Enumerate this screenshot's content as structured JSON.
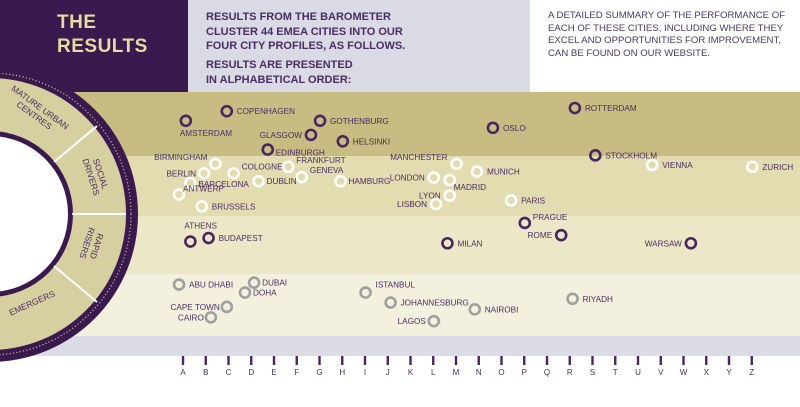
{
  "header": {
    "title_line1": "THE",
    "title_line2": "RESULTS",
    "intro_line1": "RESULTS FROM THE BAROMETER",
    "intro_line2": "CLUSTER 44 EMEA CITIES INTO OUR",
    "intro_line3": "FOUR CITY PROFILES, AS FOLLOWS.",
    "order_line1": "RESULTS ARE PRESENTED",
    "order_line2": "IN ALPHABETICAL ORDER:",
    "summary": "A DETAILED SUMMARY OF THE PERFORMANCE OF EACH OF THESE CITIES, INCLUDING WHERE THEY EXCEL AND OPPORTUNITIES FOR IMPROVEMENT, CAN BE FOUND ON OUR WEBSITE."
  },
  "colors": {
    "header_dark": "#3a1a4e",
    "header_accent": "#e4dd9f",
    "band_mature": "#c7bc82",
    "band_social": "#e3dcb1",
    "band_rapid": "#ece7c7",
    "band_emergers": "#f3f0de",
    "ring_dark": "#3a1a4e",
    "marker_mature": "#4a2560",
    "marker_social": "#ffffff",
    "marker_rapid": "#4a2560",
    "marker_emergers": "#a0a0a0"
  },
  "profiles": [
    {
      "id": "mature",
      "label_lines": [
        "MATURE URBAN",
        "CENTRES"
      ]
    },
    {
      "id": "social",
      "label_lines": [
        "SOCIAL",
        "DRIVERS"
      ]
    },
    {
      "id": "rapid",
      "label_lines": [
        "RAPID",
        "RISERS"
      ]
    },
    {
      "id": "emergers",
      "label_lines": [
        "EMERGERS"
      ]
    }
  ],
  "letters": [
    "A",
    "B",
    "C",
    "D",
    "E",
    "F",
    "G",
    "H",
    "I",
    "J",
    "K",
    "L",
    "M",
    "N",
    "O",
    "P",
    "Q",
    "R",
    "S",
    "T",
    "U",
    "V",
    "W",
    "X",
    "Y",
    "Z"
  ],
  "cities": [
    {
      "name": "AMSTERDAM",
      "profile": "mature",
      "col": 0.3,
      "row": 0.45
    },
    {
      "name": "COPENHAGEN",
      "profile": "mature",
      "col": 2.1,
      "row": 0.3
    },
    {
      "name": "GLASGOW",
      "profile": "mature",
      "col": 5.8,
      "row": 0.67
    },
    {
      "name": "GOTHENBURG",
      "profile": "mature",
      "col": 6.2,
      "row": 0.45
    },
    {
      "name": "EDINBURGH",
      "profile": "mature",
      "col": 3.9,
      "row": 0.9
    },
    {
      "name": "HELSINKI",
      "profile": "mature",
      "col": 7.2,
      "row": 0.77
    },
    {
      "name": "OSLO",
      "profile": "mature",
      "col": 13.8,
      "row": 0.56
    },
    {
      "name": "ROTTERDAM",
      "profile": "mature",
      "col": 17.4,
      "row": 0.25
    },
    {
      "name": "STOCKHOLM",
      "profile": "mature",
      "col": 18.3,
      "row": 0.99
    },
    {
      "name": "BIRMINGHAM",
      "profile": "social",
      "col": 1.6,
      "row": 1.13
    },
    {
      "name": "BERLIN",
      "profile": "social",
      "col": 1.1,
      "row": 1.29
    },
    {
      "name": "COLOGNE",
      "profile": "social",
      "col": 2.4,
      "row": 1.29
    },
    {
      "name": "FRANKFURT",
      "profile": "social",
      "col": 4.8,
      "row": 1.18
    },
    {
      "name": "GENEVA",
      "profile": "social",
      "col": 5.4,
      "row": 1.35
    },
    {
      "name": "BARCELONA",
      "profile": "social",
      "col": 0.5,
      "row": 1.45
    },
    {
      "name": "DUBLIN",
      "profile": "social",
      "col": 3.5,
      "row": 1.42
    },
    {
      "name": "HAMBURG",
      "profile": "social",
      "col": 7.1,
      "row": 1.42
    },
    {
      "name": "ANTWERP",
      "profile": "social",
      "col": 0.0,
      "row": 1.64
    },
    {
      "name": "BRUSSELS",
      "profile": "social",
      "col": 1.0,
      "row": 1.84
    },
    {
      "name": "MANCHESTER",
      "profile": "social",
      "col": 12.2,
      "row": 1.13
    },
    {
      "name": "LONDON",
      "profile": "social",
      "col": 11.2,
      "row": 1.36
    },
    {
      "name": "MUNICH",
      "profile": "social",
      "col": 13.1,
      "row": 1.26
    },
    {
      "name": "MADRID",
      "profile": "social",
      "col": 11.9,
      "row": 1.4
    },
    {
      "name": "LYON",
      "profile": "social",
      "col": 11.9,
      "row": 1.66
    },
    {
      "name": "LISBON",
      "profile": "social",
      "col": 11.3,
      "row": 1.8
    },
    {
      "name": "PARIS",
      "profile": "social",
      "col": 14.6,
      "row": 1.74
    },
    {
      "name": "VIENNA",
      "profile": "social",
      "col": 20.8,
      "row": 1.15
    },
    {
      "name": "ZURICH",
      "profile": "social",
      "col": 25.2,
      "row": 1.18
    },
    {
      "name": "ATHENS",
      "profile": "rapid",
      "col": 0.5,
      "row": 2.44
    },
    {
      "name": "BUDAPEST",
      "profile": "rapid",
      "col": 1.3,
      "row": 2.38
    },
    {
      "name": "MILAN",
      "profile": "rapid",
      "col": 11.8,
      "row": 2.47
    },
    {
      "name": "PRAGUE",
      "profile": "rapid",
      "col": 15.2,
      "row": 2.12
    },
    {
      "name": "ROME",
      "profile": "rapid",
      "col": 16.8,
      "row": 2.33
    },
    {
      "name": "WARSAW",
      "profile": "rapid",
      "col": 22.5,
      "row": 2.47
    },
    {
      "name": "ABU DHABI",
      "profile": "emergers",
      "col": 0.0,
      "row": 3.17
    },
    {
      "name": "DUBAI",
      "profile": "emergers",
      "col": 3.3,
      "row": 3.14
    },
    {
      "name": "DOHA",
      "profile": "emergers",
      "col": 2.9,
      "row": 3.3
    },
    {
      "name": "CAPE TOWN",
      "profile": "emergers",
      "col": 2.1,
      "row": 3.53
    },
    {
      "name": "CAIRO",
      "profile": "emergers",
      "col": 1.4,
      "row": 3.7
    },
    {
      "name": "ISTANBUL",
      "profile": "emergers",
      "col": 8.2,
      "row": 3.3
    },
    {
      "name": "JOHANNESBURG",
      "profile": "emergers",
      "col": 9.3,
      "row": 3.46
    },
    {
      "name": "LAGOS",
      "profile": "emergers",
      "col": 11.2,
      "row": 3.76
    },
    {
      "name": "NAIROBI",
      "profile": "emergers",
      "col": 13.0,
      "row": 3.57
    },
    {
      "name": "RIYADH",
      "profile": "emergers",
      "col": 17.3,
      "row": 3.4
    }
  ]
}
